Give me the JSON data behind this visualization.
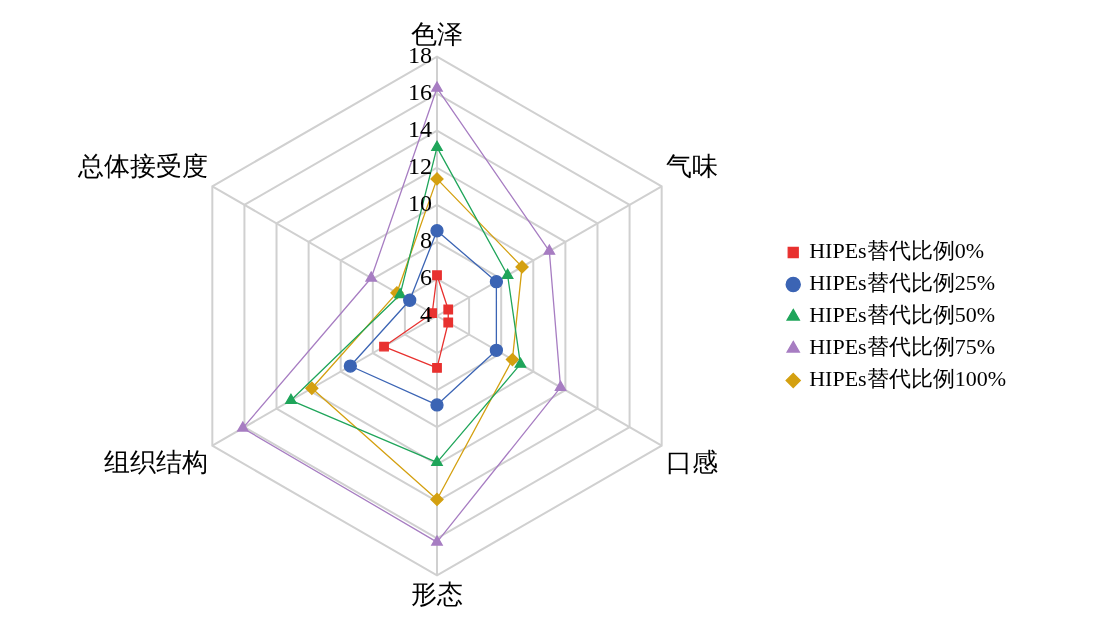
{
  "chart_data": {
    "type": "radar",
    "categories": [
      "色泽",
      "气味",
      "口感",
      "形态",
      "组织结构",
      "总体接受度"
    ],
    "ylim": [
      4,
      18
    ],
    "yticks": [
      4,
      6,
      8,
      10,
      12,
      14,
      16,
      18
    ],
    "grid": true,
    "legend": "right",
    "series": [
      {
        "name": "HIPEs替代比例0%",
        "color": "#e8312f",
        "marker": "square",
        "values": [
          6.2,
          4.7,
          4.7,
          6.8,
          7.3,
          4.3
        ]
      },
      {
        "name": "HIPEs替代比例25%",
        "color": "#3b64b4",
        "marker": "circle",
        "values": [
          8.6,
          7.7,
          7.7,
          8.8,
          9.4,
          5.7
        ]
      },
      {
        "name": "HIPEs替代比例50%",
        "color": "#1fa55a",
        "marker": "triangle",
        "values": [
          13.1,
          8.4,
          9.2,
          11.9,
          13.1,
          6.3
        ]
      },
      {
        "name": "HIPEs替代比例75%",
        "color": "#a77dc2",
        "marker": "triangle",
        "values": [
          16.3,
          11.0,
          11.7,
          16.2,
          16.1,
          8.1
        ]
      },
      {
        "name": "HIPEs替代比例100%",
        "color": "#d4a010",
        "marker": "diamond",
        "values": [
          11.4,
          9.3,
          8.7,
          13.9,
          11.8,
          6.5
        ]
      }
    ]
  }
}
